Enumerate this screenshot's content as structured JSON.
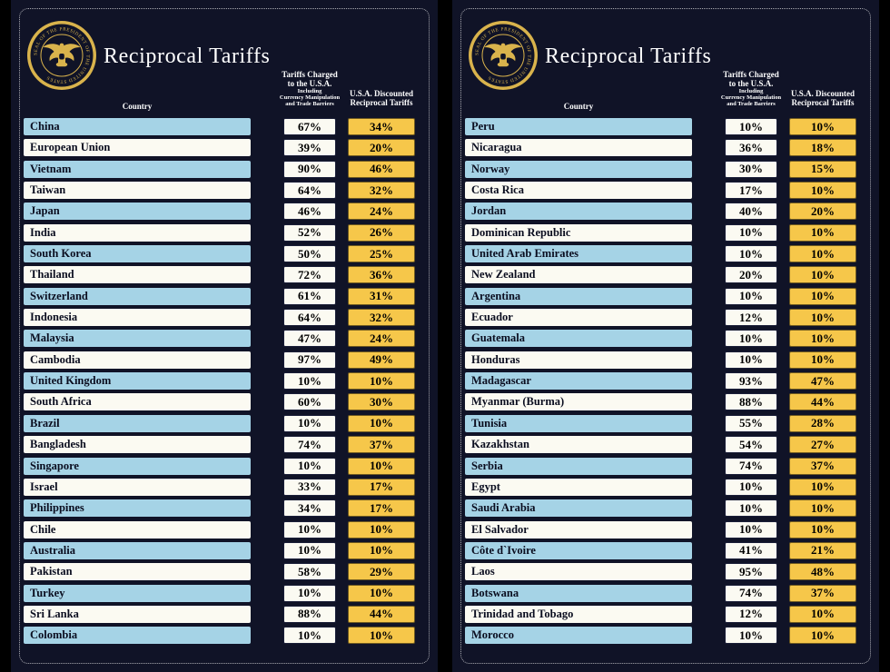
{
  "colors": {
    "background": "#000000",
    "panel_bg": "#101327",
    "row_blue": "#a5d3e6",
    "row_white": "#fbfaf2",
    "tariff_box_white": "#fbfaf2",
    "discounted_gold": "#f6c74a",
    "title_text": "#ffffff",
    "cell_text": "#0a0d1f",
    "seal_gold": "#d9b34c"
  },
  "seal": {
    "ring_text": "SEAL OF THE PRESIDENT OF THE UNITED STATES"
  },
  "header": {
    "title": "Reciprocal Tariffs",
    "country_label": "Country",
    "charged_lines": [
      "Tariffs Charged",
      "to the U.S.A."
    ],
    "charged_sub_lines": [
      "Including",
      "Currency Manipulation",
      "and Trade Barriers"
    ],
    "discounted_lines": [
      "U.S.A. Discounted",
      "Reciprocal Tariffs"
    ]
  },
  "chart_data": [
    {
      "type": "table",
      "title": "Reciprocal Tariffs",
      "columns": [
        "Country",
        "Tariffs Charged to the U.S.A. Including Currency Manipulation and Trade Barriers",
        "U.S.A. Discounted Reciprocal Tariffs"
      ],
      "rows": [
        [
          "China",
          "67%",
          "34%"
        ],
        [
          "European Union",
          "39%",
          "20%"
        ],
        [
          "Vietnam",
          "90%",
          "46%"
        ],
        [
          "Taiwan",
          "64%",
          "32%"
        ],
        [
          "Japan",
          "46%",
          "24%"
        ],
        [
          "India",
          "52%",
          "26%"
        ],
        [
          "South Korea",
          "50%",
          "25%"
        ],
        [
          "Thailand",
          "72%",
          "36%"
        ],
        [
          "Switzerland",
          "61%",
          "31%"
        ],
        [
          "Indonesia",
          "64%",
          "32%"
        ],
        [
          "Malaysia",
          "47%",
          "24%"
        ],
        [
          "Cambodia",
          "97%",
          "49%"
        ],
        [
          "United Kingdom",
          "10%",
          "10%"
        ],
        [
          "South Africa",
          "60%",
          "30%"
        ],
        [
          "Brazil",
          "10%",
          "10%"
        ],
        [
          "Bangladesh",
          "74%",
          "37%"
        ],
        [
          "Singapore",
          "10%",
          "10%"
        ],
        [
          "Israel",
          "33%",
          "17%"
        ],
        [
          "Philippines",
          "34%",
          "17%"
        ],
        [
          "Chile",
          "10%",
          "10%"
        ],
        [
          "Australia",
          "10%",
          "10%"
        ],
        [
          "Pakistan",
          "58%",
          "29%"
        ],
        [
          "Turkey",
          "10%",
          "10%"
        ],
        [
          "Sri Lanka",
          "88%",
          "44%"
        ],
        [
          "Colombia",
          "10%",
          "10%"
        ]
      ]
    },
    {
      "type": "table",
      "title": "Reciprocal Tariffs",
      "columns": [
        "Country",
        "Tariffs Charged to the U.S.A. Including Currency Manipulation and Trade Barriers",
        "U.S.A. Discounted Reciprocal Tariffs"
      ],
      "rows": [
        [
          "Peru",
          "10%",
          "10%"
        ],
        [
          "Nicaragua",
          "36%",
          "18%"
        ],
        [
          "Norway",
          "30%",
          "15%"
        ],
        [
          "Costa Rica",
          "17%",
          "10%"
        ],
        [
          "Jordan",
          "40%",
          "20%"
        ],
        [
          "Dominican Republic",
          "10%",
          "10%"
        ],
        [
          "United Arab Emirates",
          "10%",
          "10%"
        ],
        [
          "New Zealand",
          "20%",
          "10%"
        ],
        [
          "Argentina",
          "10%",
          "10%"
        ],
        [
          "Ecuador",
          "12%",
          "10%"
        ],
        [
          "Guatemala",
          "10%",
          "10%"
        ],
        [
          "Honduras",
          "10%",
          "10%"
        ],
        [
          "Madagascar",
          "93%",
          "47%"
        ],
        [
          "Myanmar (Burma)",
          "88%",
          "44%"
        ],
        [
          "Tunisia",
          "55%",
          "28%"
        ],
        [
          "Kazakhstan",
          "54%",
          "27%"
        ],
        [
          "Serbia",
          "74%",
          "37%"
        ],
        [
          "Egypt",
          "10%",
          "10%"
        ],
        [
          "Saudi Arabia",
          "10%",
          "10%"
        ],
        [
          "El Salvador",
          "10%",
          "10%"
        ],
        [
          "Côte d`Ivoire",
          "41%",
          "21%"
        ],
        [
          "Laos",
          "95%",
          "48%"
        ],
        [
          "Botswana",
          "74%",
          "37%"
        ],
        [
          "Trinidad and Tobago",
          "12%",
          "10%"
        ],
        [
          "Morocco",
          "10%",
          "10%"
        ]
      ]
    }
  ]
}
